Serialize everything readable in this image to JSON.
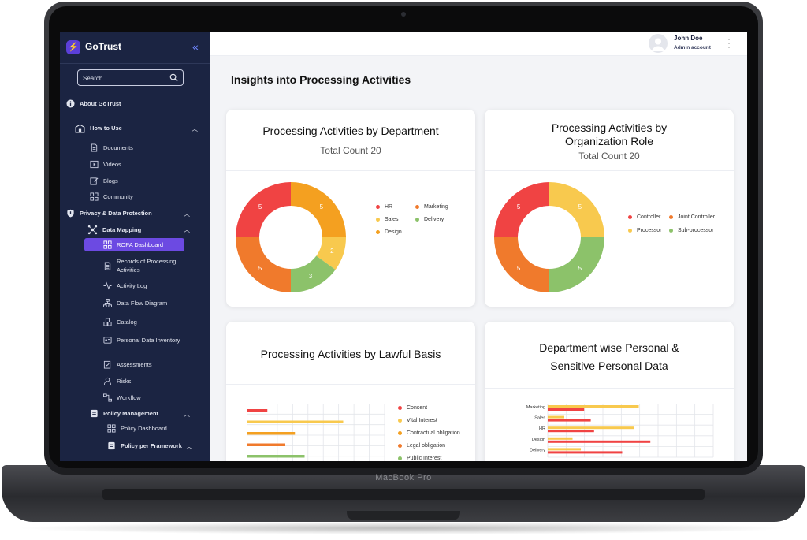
{
  "device": {
    "brand": "MacBook Pro"
  },
  "colors": {
    "red": "#f04343",
    "orange": "#f07a2c",
    "amber": "#f4a020",
    "yellow": "#f8c94e",
    "green": "#8cc26a",
    "accent": "#6c4ae2",
    "sidebar": "#1b2442"
  },
  "sidebar": {
    "app_name": "GoTrust",
    "logo_icon": "gotrust-logo-icon",
    "search_placeholder": "Search",
    "items": [
      {
        "label": "About GoTrust",
        "icon": "info-icon"
      },
      {
        "label": "How to Use",
        "icon": "school-icon"
      },
      {
        "label": "Documents",
        "icon": "document-icon"
      },
      {
        "label": "Videos",
        "icon": "video-icon"
      },
      {
        "label": "Blogs",
        "icon": "blog-icon"
      },
      {
        "label": "Community",
        "icon": "community-icon"
      },
      {
        "label": "Privacy & Data Protection",
        "icon": "shield-icon"
      },
      {
        "label": "Data  Mapping",
        "icon": "mapping-icon"
      },
      {
        "label": "ROPA Dashboard",
        "icon": "dashboard-icon"
      },
      {
        "label": "Records of Processing Activities",
        "icon": "records-icon"
      },
      {
        "label": "Activity Log",
        "icon": "activity-icon"
      },
      {
        "label": "Data Flow Diagram",
        "icon": "flow-icon"
      },
      {
        "label": "Catalog",
        "icon": "catalog-icon"
      },
      {
        "label": "Personal Data Inventory",
        "icon": "inventory-icon"
      },
      {
        "label": "Assessments",
        "icon": "assessment-icon"
      },
      {
        "label": "Risks",
        "icon": "risk-icon"
      },
      {
        "label": "Workflow",
        "icon": "workflow-icon"
      },
      {
        "label": "Policy Management",
        "icon": "policy-icon"
      },
      {
        "label": "Policy Dashboard",
        "icon": "dashboard-icon"
      },
      {
        "label": "Policy per Framework",
        "icon": "framework-icon"
      }
    ]
  },
  "header": {
    "user_name": "John Doe",
    "user_role": "Admin account"
  },
  "main": {
    "page_title": "Insights into Processing Activities",
    "cards": {
      "department": {
        "title": "Processing Activities by Department",
        "subtitle": "Total Count 20"
      },
      "role": {
        "title": "Processing Activities by Organization Role",
        "subtitle": "Total Count 20"
      },
      "lawful": {
        "title": "Processing Activities by Lawful Basis"
      },
      "personal": {
        "title": "Department wise Personal & Sensitive Personal Data"
      }
    }
  },
  "chart_data": [
    {
      "type": "pie",
      "title": "Processing Activities by Department",
      "subtitle": "Total Count 20",
      "legend_placement": "right",
      "slices": [
        {
          "name": "HR",
          "value": 5,
          "color": "#f04343"
        },
        {
          "name": "Marketing",
          "value": 5,
          "color": "#f07a2c"
        },
        {
          "name": "Sales",
          "value": 2,
          "color": "#f8c94e"
        },
        {
          "name": "Delivery",
          "value": 3,
          "color": "#8cc26a"
        },
        {
          "name": "Design",
          "value": 5,
          "color": "#f4a020"
        }
      ],
      "draw_order": [
        "Design",
        "Sales",
        "Delivery",
        "Marketing",
        "HR"
      ]
    },
    {
      "type": "pie",
      "title": "Processing Activities by Organization Role",
      "subtitle": "Total Count 20",
      "legend_placement": "right",
      "slices": [
        {
          "name": "Controller",
          "value": 5,
          "color": "#f04343"
        },
        {
          "name": "Joint Controller",
          "value": 5,
          "color": "#f07a2c"
        },
        {
          "name": "Processor",
          "value": 5,
          "color": "#f8c94e"
        },
        {
          "name": "Sub-processor",
          "value": 5,
          "color": "#8cc26a"
        }
      ],
      "draw_order": [
        "Processor",
        "Sub-processor",
        "Joint Controller",
        "Controller"
      ]
    },
    {
      "type": "bar",
      "orientation": "horizontal",
      "title": "Processing Activities by Lawful Basis",
      "legend_placement": "right",
      "grid": true,
      "xlim": [
        0,
        10
      ],
      "categories": [
        "Consent",
        "Vital Interest",
        "Contractual obligation",
        "Legal obligation",
        "Public Interest"
      ],
      "colors": [
        "#f04343",
        "#f8c94e",
        "#f4a020",
        "#f07a2c",
        "#8cc26a"
      ],
      "values": [
        1.5,
        7,
        3.5,
        2.8,
        4.2
      ]
    },
    {
      "type": "bar",
      "orientation": "horizontal",
      "title": "Department wise Personal & Sensitive Personal Data",
      "grid": true,
      "xlim": [
        0,
        10
      ],
      "categories": [
        "Marketing",
        "Sales",
        "HR",
        "Design",
        "Delivery"
      ],
      "series": [
        {
          "color": "#f8c94e",
          "values": [
            5.5,
            1,
            5.2,
            1.5,
            2
          ]
        },
        {
          "color": "#f04343",
          "values": [
            2.2,
            2.6,
            2.8,
            6.2,
            4.5
          ]
        }
      ]
    }
  ]
}
